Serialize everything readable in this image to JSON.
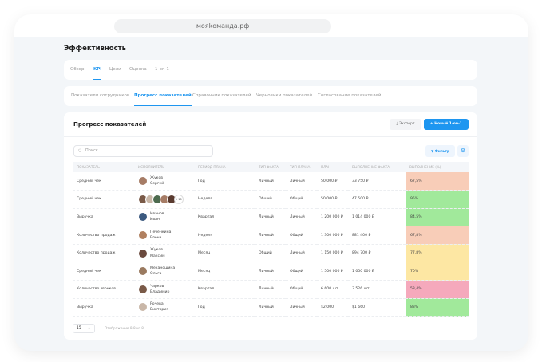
{
  "browser": {
    "url": "мояkоманда.рф"
  },
  "page": {
    "title": "Эффективность"
  },
  "tabs": [
    {
      "label": "Обзор"
    },
    {
      "label": "KPI",
      "active": true
    },
    {
      "label": "Цели"
    },
    {
      "label": "Оценка"
    },
    {
      "label": "1-on-1"
    }
  ],
  "subtabs": [
    {
      "label": "Показатели сотрудников"
    },
    {
      "label": "Прогресс показателей",
      "active": true
    },
    {
      "label": "Справочник показателей"
    },
    {
      "label": "Черновики показателей"
    },
    {
      "label": "Согласование показателей"
    }
  ],
  "main": {
    "title": "Прогресс показателей",
    "export_label": "Экспорт",
    "new_label": "Новый 1-on-1",
    "search_placeholder": "Поиск",
    "filter_label": "Фильтр"
  },
  "table": {
    "columns": [
      "Показатель",
      "Исполнитель",
      "Период плана",
      "Тип факта",
      "Тип плана",
      "План",
      "Выполнение факта",
      "Выполнение (%)"
    ],
    "rows": [
      {
        "metric": "Средний чек",
        "assignee": [
          "Жуков",
          "Сергей"
        ],
        "period": "Год",
        "fact_type": "Личный",
        "plan_type": "Личный",
        "plan": "50 000 ₽",
        "fact": "33 750 ₽",
        "pct": "67,5%",
        "color": "#f8cdb8"
      },
      {
        "metric": "Средний чек",
        "assignee_group": "+10",
        "period": "Неделя",
        "fact_type": "Общий",
        "plan_type": "Общий",
        "plan": "50 000 ₽",
        "fact": "47 500 ₽",
        "pct": "95%",
        "color": "#a1e99b"
      },
      {
        "metric": "Выручка",
        "assignee": [
          "Иванов",
          "Иван"
        ],
        "period": "Квартал",
        "fact_type": "Личный",
        "plan_type": "Личный",
        "plan": "1 200 000 ₽",
        "fact": "1 014 000 ₽",
        "pct": "84,5%",
        "color": "#a1e99b"
      },
      {
        "metric": "Количество продаж",
        "assignee": [
          "Печенкина",
          "Елена"
        ],
        "period": "Неделя",
        "fact_type": "Личный",
        "plan_type": "Общий",
        "plan": "1 300 000 ₽",
        "fact": "881 400 ₽",
        "pct": "67,8%",
        "color": "#f8cdb8"
      },
      {
        "metric": "Количество продаж",
        "assignee": [
          "Жуков",
          "Максим"
        ],
        "period": "Месяц",
        "fact_type": "Общий",
        "plan_type": "Личный",
        "plan": "1 150 000 ₽",
        "fact": "894 700 ₽",
        "pct": "77,8%",
        "color": "#fde7a3"
      },
      {
        "metric": "Средний чек",
        "assignee": [
          "Механошина",
          "Ольга"
        ],
        "period": "Месяц",
        "fact_type": "Личный",
        "plan_type": "Общий",
        "plan": "1 500 000 ₽",
        "fact": "1 050 000 ₽",
        "pct": "70%",
        "color": "#fde7a3"
      },
      {
        "metric": "Количество звонков",
        "assignee": [
          "Чарков",
          "Владимир"
        ],
        "period": "Квартал",
        "fact_type": "Личный",
        "plan_type": "Общий",
        "plan": "6 600 шт.",
        "fact": "3 526 шт.",
        "pct": "53,4%",
        "color": "#f5a9bc"
      },
      {
        "metric": "Выручка",
        "assignee": [
          "Рочева",
          "Виктория"
        ],
        "period": "Год",
        "fact_type": "Личный",
        "plan_type": "Личный",
        "plan": "$2 000",
        "fact": "$1 660",
        "pct": "83%",
        "color": "#a1e99b"
      }
    ]
  },
  "pagination": {
    "page_size": "15",
    "info": "Отображение 8-8 из 8"
  },
  "colors": {
    "accent": "#1e96f0"
  }
}
